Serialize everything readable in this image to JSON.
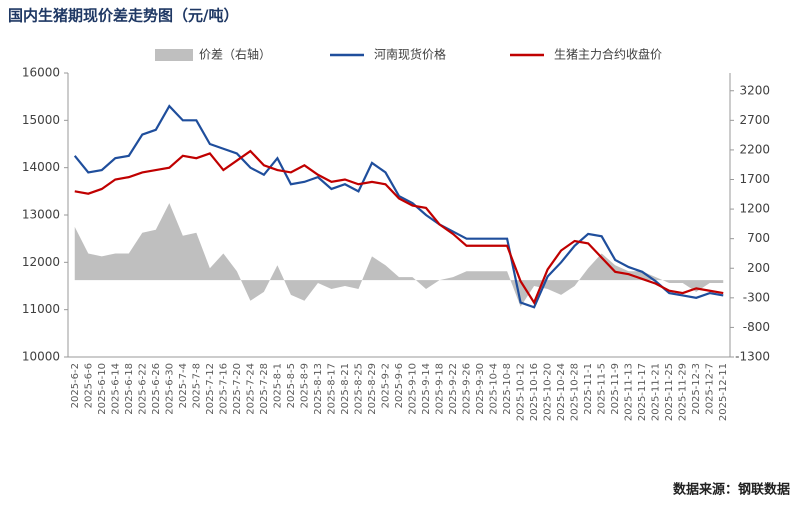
{
  "chart_data": {
    "type": "line",
    "title": "国内生猪期现价差走势图（元/吨）",
    "source": "数据来源：钢联数据",
    "categories": [
      "2025-6-2",
      "2025-6-6",
      "2025-6-10",
      "2025-6-14",
      "2025-6-18",
      "2025-6-22",
      "2025-6-26",
      "2025-6-30",
      "2025-7-4",
      "2025-7-8",
      "2025-7-12",
      "2025-7-16",
      "2025-7-20",
      "2025-7-24",
      "2025-7-28",
      "2025-8-1",
      "2025-8-5",
      "2025-8-9",
      "2025-8-13",
      "2025-8-17",
      "2025-8-21",
      "2025-8-25",
      "2025-8-29",
      "2025-9-2",
      "2025-9-6",
      "2025-9-10",
      "2025-9-14",
      "2025-9-18",
      "2025-9-22",
      "2025-9-26",
      "2025-9-30",
      "2025-10-4",
      "2025-10-8",
      "2025-10-12",
      "2025-10-16",
      "2025-10-20",
      "2025-10-24",
      "2025-10-28",
      "2025-11-1",
      "2025-11-5",
      "2025-11-9",
      "2025-11-13",
      "2025-11-17",
      "2025-11-21",
      "2025-11-25",
      "2025-11-29",
      "2025-12-3",
      "2025-12-7",
      "2025-12-11"
    ],
    "series": [
      {
        "name": "价差（右轴）",
        "color": "#bfbfbf",
        "kind": "area",
        "axis": "y2",
        "values": [
          900,
          450,
          400,
          450,
          450,
          800,
          850,
          1300,
          750,
          800,
          200,
          450,
          150,
          -350,
          -200,
          250,
          -250,
          -350,
          -50,
          -150,
          -100,
          -150,
          400,
          250,
          50,
          50,
          -150,
          0,
          50,
          150,
          150,
          150,
          150,
          -450,
          -100,
          -150,
          -250,
          -100,
          200,
          450,
          250,
          150,
          150,
          50,
          -50,
          -50,
          -200,
          -50,
          -50
        ]
      },
      {
        "name": "河南现货价格",
        "color": "#1f4e9c",
        "values": [
          14250,
          13900,
          13950,
          14200,
          14250,
          14700,
          14800,
          15300,
          15000,
          15000,
          14500,
          14400,
          14300,
          14000,
          13850,
          14200,
          13650,
          13700,
          13800,
          13550,
          13650,
          13500,
          14100,
          13900,
          13400,
          13250,
          13000,
          12800,
          12650,
          12500,
          12500,
          12500,
          12500,
          11150,
          11050,
          11700,
          12000,
          12350,
          12600,
          12550,
          12050,
          11900,
          11800,
          11600,
          11350,
          11300,
          11250,
          11350,
          11300
        ]
      },
      {
        "name": "生猪主力合约收盘价",
        "color": "#c00000",
        "values": [
          13500,
          13450,
          13550,
          13750,
          13800,
          13900,
          13950,
          14000,
          14250,
          14200,
          14300,
          13950,
          14150,
          14350,
          14050,
          13950,
          13900,
          14050,
          13850,
          13700,
          13750,
          13650,
          13700,
          13650,
          13350,
          13200,
          13150,
          12800,
          12600,
          12350,
          12350,
          12350,
          12350,
          11600,
          11150,
          11850,
          12250,
          12450,
          12400,
          12100,
          11800,
          11750,
          11650,
          11550,
          11400,
          11350,
          11450,
          11400,
          11350
        ]
      }
    ],
    "ylim": [
      10000,
      16000
    ],
    "yticks": [
      10000,
      11000,
      12000,
      13000,
      14000,
      15000,
      16000
    ],
    "y2lim": [
      -1300,
      3500
    ],
    "y2ticks": [
      -1300,
      -800,
      -300,
      200,
      700,
      1200,
      1700,
      2200,
      2700,
      3200
    ]
  }
}
